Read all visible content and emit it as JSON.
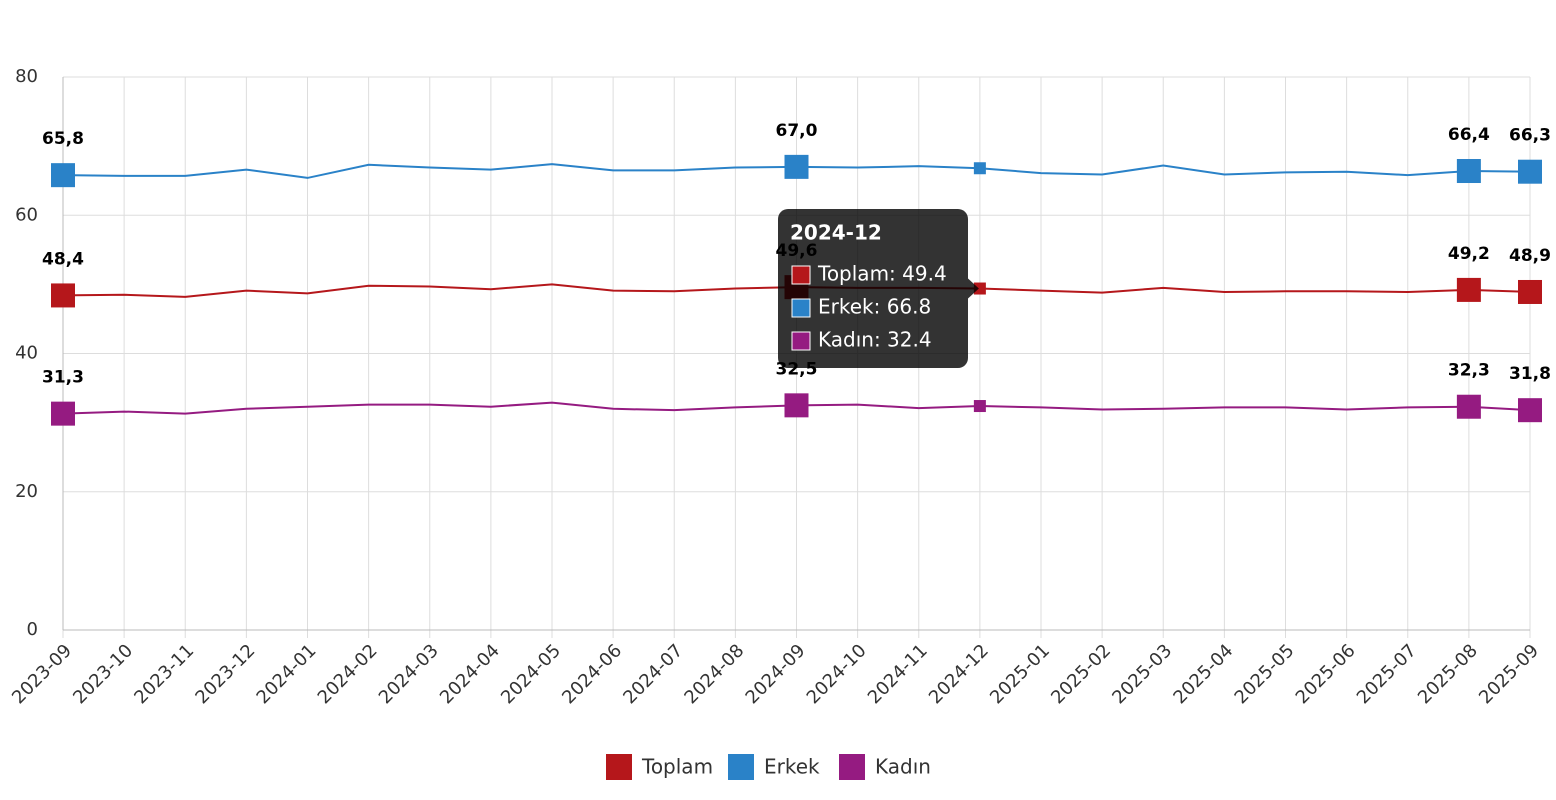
{
  "chart_data": {
    "type": "line",
    "categories": [
      "2023-09",
      "2023-10",
      "2023-11",
      "2023-12",
      "2024-01",
      "2024-02",
      "2024-03",
      "2024-04",
      "2024-05",
      "2024-06",
      "2024-07",
      "2024-08",
      "2024-09",
      "2024-10",
      "2024-11",
      "2024-12",
      "2025-01",
      "2025-02",
      "2025-03",
      "2025-04",
      "2025-05",
      "2025-06",
      "2025-07",
      "2025-08",
      "2025-09"
    ],
    "series": [
      {
        "name": "Toplam",
        "color": "#b5171b",
        "values": [
          48.4,
          48.5,
          48.2,
          49.1,
          48.7,
          49.8,
          49.7,
          49.3,
          50.0,
          49.1,
          49.0,
          49.4,
          49.6,
          49.5,
          49.5,
          49.4,
          49.1,
          48.8,
          49.5,
          48.9,
          49.0,
          49.0,
          48.9,
          49.2,
          48.9
        ],
        "value_labels": [
          "48,4",
          null,
          null,
          null,
          null,
          null,
          null,
          null,
          null,
          null,
          null,
          null,
          "49,6",
          null,
          null,
          null,
          null,
          null,
          null,
          null,
          null,
          null,
          null,
          "49,2",
          "48,9"
        ]
      },
      {
        "name": "Erkek",
        "color": "#2a82c8",
        "values": [
          65.8,
          65.7,
          65.7,
          66.6,
          65.4,
          67.3,
          66.9,
          66.6,
          67.4,
          66.5,
          66.5,
          66.9,
          67.0,
          66.9,
          67.1,
          66.8,
          66.1,
          65.9,
          67.2,
          65.9,
          66.2,
          66.3,
          65.8,
          66.4,
          66.3
        ],
        "value_labels": [
          "65,8",
          null,
          null,
          null,
          null,
          null,
          null,
          null,
          null,
          null,
          null,
          null,
          "67,0",
          null,
          null,
          null,
          null,
          null,
          null,
          null,
          null,
          null,
          null,
          "66,4",
          "66,3"
        ]
      },
      {
        "name": "Kadın",
        "color": "#951b81",
        "values": [
          31.3,
          31.6,
          31.3,
          32.0,
          32.3,
          32.6,
          32.6,
          32.3,
          32.9,
          32.0,
          31.8,
          32.2,
          32.5,
          32.6,
          32.1,
          32.4,
          32.2,
          31.9,
          32.0,
          32.2,
          32.2,
          31.9,
          32.2,
          32.3,
          31.8
        ],
        "value_labels": [
          "31,3",
          null,
          null,
          null,
          null,
          null,
          null,
          null,
          null,
          null,
          null,
          null,
          "32,5",
          null,
          null,
          null,
          null,
          null,
          null,
          null,
          null,
          null,
          null,
          "32,3",
          "31,8"
        ]
      }
    ],
    "ylim": [
      0,
      80
    ],
    "yticks": [
      0,
      20,
      40,
      60,
      80
    ],
    "grid": true,
    "legend": "bottom",
    "tooltip": {
      "title": "2024-12",
      "items": [
        "Toplam: 49.4",
        "Erkek: 66.8",
        "Kadın: 32.4"
      ]
    }
  }
}
